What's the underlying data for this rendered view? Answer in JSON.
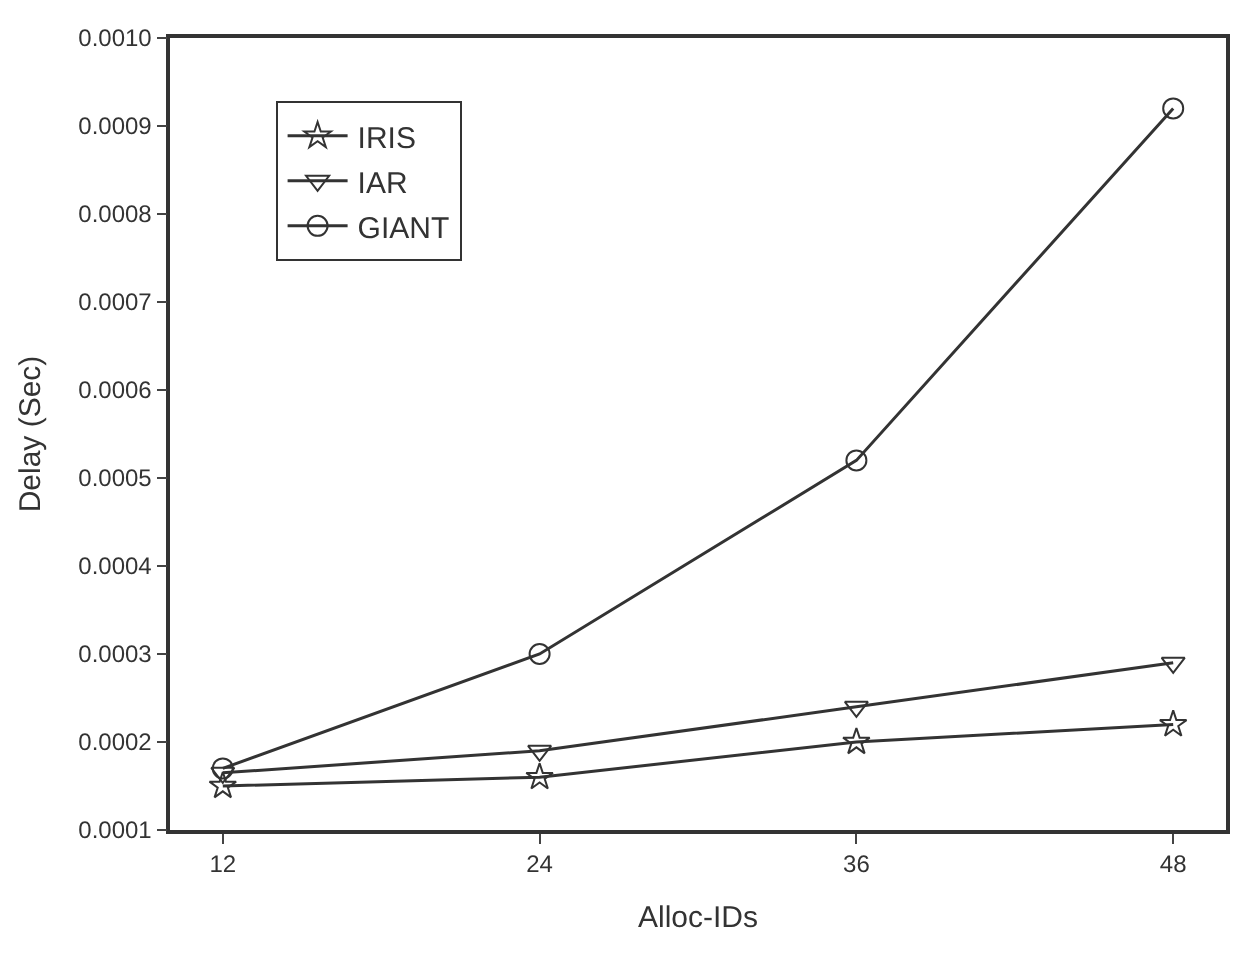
{
  "chart_data": {
    "type": "line",
    "xlabel": "Alloc-IDs",
    "ylabel": "Delay (Sec)",
    "x": [
      12,
      24,
      36,
      48
    ],
    "series": [
      {
        "name": "IRIS",
        "color": "#333333",
        "marker": "star",
        "values": [
          0.00015,
          0.00016,
          0.0002,
          0.00022
        ]
      },
      {
        "name": "IAR",
        "color": "#333333",
        "marker": "triangle",
        "values": [
          0.000165,
          0.00019,
          0.00024,
          0.00029
        ]
      },
      {
        "name": "GIANT",
        "color": "#333333",
        "marker": "circle",
        "values": [
          0.00017,
          0.0003,
          0.00052,
          0.00092
        ]
      }
    ],
    "xlim": [
      10,
      50
    ],
    "xticks": [
      12,
      24,
      36,
      48
    ],
    "ylim": [
      0.0001,
      0.001
    ],
    "yticks": [
      {
        "value": 0.0001,
        "label": "0.0001"
      },
      {
        "value": 0.0002,
        "label": "0.0002"
      },
      {
        "value": 0.0003,
        "label": "0.0003"
      },
      {
        "value": 0.0004,
        "label": "0.0004"
      },
      {
        "value": 0.0005,
        "label": "0.0005"
      },
      {
        "value": 0.0006,
        "label": "0.0006"
      },
      {
        "value": 0.0007,
        "label": "0.0007"
      },
      {
        "value": 0.0008,
        "label": "0.0008"
      },
      {
        "value": 0.0009,
        "label": "0.0009"
      },
      {
        "value": 0.001,
        "label": "0.0010"
      }
    ],
    "legend": "top left",
    "line_style": "solid"
  }
}
